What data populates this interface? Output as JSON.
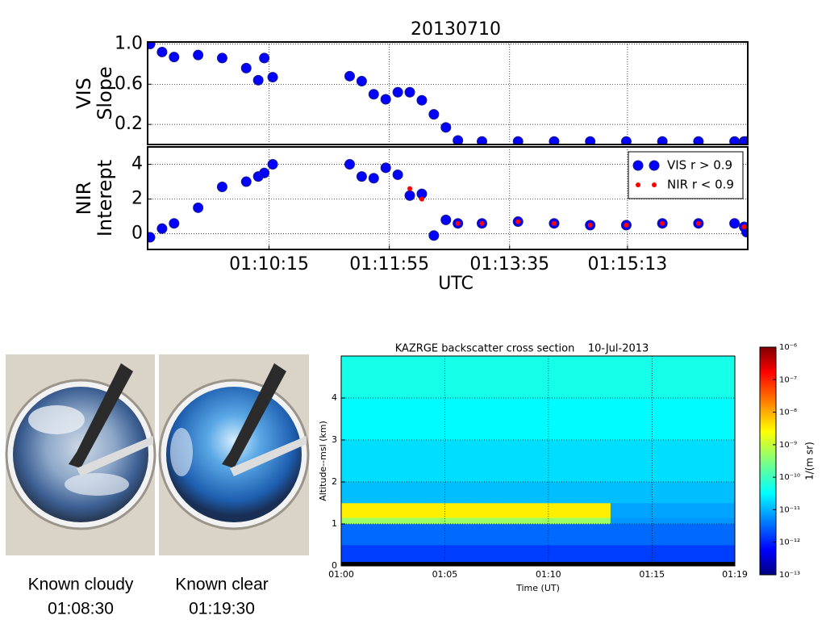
{
  "chart_data": [
    {
      "type": "scatter",
      "title": "20130710",
      "ylabel": [
        "VIS",
        "Slope"
      ],
      "x": [
        "01:08:36",
        "01:08:46",
        "01:08:56",
        "01:09:16",
        "01:09:36",
        "01:09:56",
        "01:10:06",
        "01:10:11",
        "01:10:18",
        "01:11:22",
        "01:11:32",
        "01:11:42",
        "01:11:52",
        "01:12:02",
        "01:12:12",
        "01:12:22",
        "01:12:32",
        "01:12:42",
        "01:12:52",
        "01:13:12",
        "01:13:42",
        "01:14:12",
        "01:14:42",
        "01:15:12",
        "01:15:42",
        "01:16:12",
        "01:16:42",
        "01:16:50",
        "01:16:52"
      ],
      "series": [
        {
          "name": "VIS r > 0.9",
          "color": "#0000ff",
          "marker": "o",
          "values": [
            1.0,
            0.92,
            0.87,
            0.89,
            0.86,
            0.76,
            0.64,
            0.86,
            0.67,
            0.68,
            0.63,
            0.5,
            0.45,
            0.52,
            0.52,
            0.44,
            0.3,
            0.17,
            0.04,
            0.03,
            0.03,
            0.03,
            0.03,
            0.03,
            0.03,
            0.03,
            0.03,
            0.03,
            0.03
          ]
        }
      ],
      "xlim": [
        "01:08:34",
        "01:16:53"
      ],
      "ylim": [
        0,
        1.02
      ],
      "yticks": [
        0.2,
        0.6,
        {
          "value": 1.0,
          "label": "1.0"
        }
      ],
      "grid": true
    },
    {
      "type": "scatter",
      "xlabel": "UTC",
      "ylabel": [
        "NIR",
        "Interept"
      ],
      "x": [
        "01:08:36",
        "01:08:46",
        "01:08:56",
        "01:09:16",
        "01:09:36",
        "01:09:56",
        "01:10:06",
        "01:10:11",
        "01:10:18",
        "01:11:22",
        "01:11:32",
        "01:11:42",
        "01:11:52",
        "01:12:02",
        "01:12:12",
        "01:12:22",
        "01:12:32",
        "01:12:42",
        "01:12:52",
        "01:13:12",
        "01:13:42",
        "01:14:12",
        "01:14:42",
        "01:15:12",
        "01:15:42",
        "01:16:12",
        "01:16:42",
        "01:16:50",
        "01:16:52"
      ],
      "series": [
        {
          "name": "VIS r > 0.9",
          "color": "#0000ff",
          "marker": "o",
          "values": [
            -0.2,
            0.3,
            0.6,
            1.5,
            2.7,
            3.0,
            3.3,
            3.5,
            4.0,
            4.0,
            3.3,
            3.2,
            3.8,
            3.4,
            2.2,
            2.3,
            -0.1,
            0.8,
            0.6,
            0.6,
            0.7,
            0.6,
            0.5,
            0.5,
            0.6,
            0.6,
            0.6,
            0.4,
            0.1
          ]
        },
        {
          "name": "NIR r < 0.9",
          "color": "#ff0000",
          "marker": ".",
          "values": [
            null,
            null,
            null,
            null,
            null,
            null,
            null,
            null,
            null,
            null,
            null,
            null,
            null,
            null,
            2.6,
            2.0,
            null,
            null,
            0.6,
            0.6,
            0.7,
            0.6,
            0.5,
            0.5,
            0.6,
            0.6,
            null,
            0.4,
            null
          ]
        }
      ],
      "xlim": [
        "01:08:34",
        "01:16:53"
      ],
      "ylim": [
        -0.9,
        5
      ],
      "xticks": [
        "01:10:15",
        "01:11:55",
        "01:13:35",
        "01:15:13"
      ],
      "yticks": [
        0,
        2,
        4
      ],
      "grid": true,
      "legend": "upper right"
    },
    {
      "type": "heatmap",
      "title": "KAZRGE backscatter cross section    10-Jul-2013",
      "xlabel": "Time (UT)",
      "ylabel": "Altitude--msl (km)",
      "colorbar_label": "1/(m sr)",
      "x_edges": [
        "01:00",
        "01:01",
        "01:02",
        "01:03",
        "01:04",
        "01:05",
        "01:06",
        "01:07",
        "01:08",
        "01:09",
        "01:10",
        "01:11",
        "01:12",
        "01:13",
        "01:14",
        "01:15",
        "01:16",
        "01:17",
        "01:18",
        "01:19"
      ],
      "y_edges": [
        0,
        0.1,
        0.5,
        1.0,
        1.15,
        1.5,
        2,
        3,
        4,
        5
      ],
      "z": [
        [
          1e-13,
          1e-13,
          1e-13,
          1e-13,
          1e-13,
          1e-13,
          1e-13,
          1e-13,
          1e-13,
          1e-13,
          1e-13,
          1e-13,
          1e-13,
          1e-13,
          1e-13,
          1e-13,
          1e-13,
          1e-13,
          1e-13
        ],
        [
          2e-12,
          2e-12,
          2e-12,
          2e-12,
          2e-12,
          2e-12,
          2e-12,
          2e-12,
          2e-12,
          2e-12,
          2e-12,
          2e-12,
          2e-12,
          2e-12,
          2e-12,
          2e-12,
          2e-12,
          2e-12,
          2e-12
        ],
        [
          4e-12,
          4e-12,
          4e-12,
          4e-12,
          4e-12,
          4e-12,
          4e-12,
          4e-12,
          4e-12,
          4e-12,
          4e-12,
          4e-12,
          4e-12,
          4e-12,
          4e-12,
          4e-12,
          4e-12,
          4e-12,
          4e-12
        ],
        [
          5e-10,
          5e-10,
          5e-10,
          5e-10,
          5e-10,
          5e-10,
          5e-10,
          5e-10,
          5e-10,
          5e-10,
          5e-10,
          5e-10,
          5e-10,
          8e-12,
          8e-12,
          8e-12,
          8e-12,
          8e-12,
          8e-12
        ],
        [
          3e-09,
          3e-09,
          3e-09,
          3e-09,
          3e-09,
          3e-09,
          3e-09,
          3e-09,
          3e-09,
          3e-09,
          3e-09,
          3e-09,
          3e-09,
          1e-11,
          1e-11,
          1e-11,
          1e-11,
          1e-11,
          1e-11
        ],
        [
          1.5e-11,
          1.5e-11,
          1.5e-11,
          1.5e-11,
          1.5e-11,
          1.5e-11,
          1.5e-11,
          1.5e-11,
          1.5e-11,
          1.5e-11,
          1.5e-11,
          1.5e-11,
          1.5e-11,
          1.5e-11,
          1.5e-11,
          1.5e-11,
          1.5e-11,
          1.5e-11,
          1.5e-11
        ],
        [
          2.5e-11,
          2.5e-11,
          2.5e-11,
          2.5e-11,
          2.5e-11,
          2.5e-11,
          2.5e-11,
          2.5e-11,
          2.5e-11,
          2.5e-11,
          2.5e-11,
          2.5e-11,
          2.5e-11,
          2.5e-11,
          2.5e-11,
          2.5e-11,
          2.5e-11,
          2.5e-11,
          2.5e-11
        ],
        [
          4e-11,
          4e-11,
          4e-11,
          4e-11,
          4e-11,
          4e-11,
          4e-11,
          4e-11,
          4e-11,
          4e-11,
          4e-11,
          4e-11,
          4e-11,
          4e-11,
          4e-11,
          4e-11,
          4e-11,
          4e-11,
          4e-11
        ],
        [
          6e-11,
          6e-11,
          6e-11,
          6e-11,
          6e-11,
          6e-11,
          6e-11,
          6e-11,
          6e-11,
          6e-11,
          6e-11,
          6e-11,
          6e-11,
          6e-11,
          6e-11,
          6e-11,
          6e-11,
          6e-11,
          6e-11
        ]
      ],
      "xlim": [
        "01:00",
        "01:19"
      ],
      "ylim": [
        0,
        5
      ],
      "xticks": [
        "01:00",
        "01:05",
        "01:10",
        "01:15",
        "01:19"
      ],
      "yticks": [
        0,
        1,
        2,
        3,
        4
      ],
      "grid": true,
      "colormap": "jet",
      "clim": [
        1e-13,
        1e-06
      ],
      "log_scale": true,
      "cticks": [
        {
          "value": 1e-13,
          "label": "10⁻¹³"
        },
        {
          "value": 1e-12,
          "label": "10⁻¹²"
        },
        {
          "value": 1e-11,
          "label": "10⁻¹¹"
        },
        {
          "value": 1e-10,
          "label": "10⁻¹⁰"
        },
        {
          "value": 1e-09,
          "label": "10⁻⁹"
        },
        {
          "value": 1e-08,
          "label": "10⁻⁸"
        },
        {
          "value": 1e-07,
          "label": "10⁻⁷"
        },
        {
          "value": 1e-06,
          "label": "10⁻⁶"
        }
      ]
    }
  ],
  "photos": [
    {
      "caption": [
        "Known cloudy",
        "01:08:30"
      ]
    },
    {
      "caption": [
        "Known clear",
        "01:19:30"
      ]
    }
  ]
}
